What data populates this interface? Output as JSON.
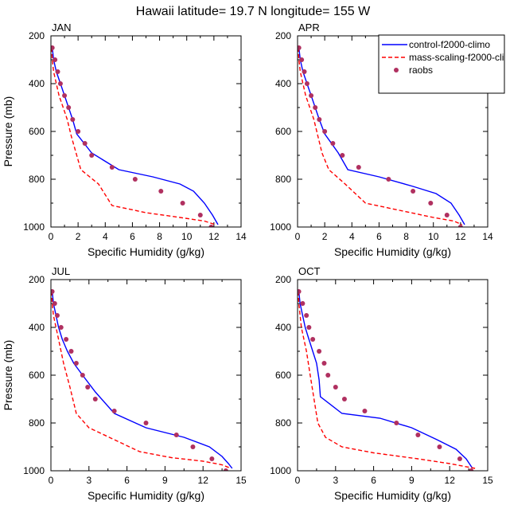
{
  "title": "Hawaii  latitude= 19.7 N longitude= 155 W",
  "legend": [
    {
      "name": "control-f2000-climo",
      "color": "#0000ff",
      "style": "solid"
    },
    {
      "name": "mass-scaling-f2000-cli",
      "color": "#ff0000",
      "style": "dashed"
    },
    {
      "name": "raobs",
      "color": "#b03060",
      "style": "marker"
    }
  ],
  "chart_data": [
    {
      "type": "line",
      "panel": "JAN",
      "xlabel": "Specific Humidity (g/kg)",
      "ylabel": "Pressure (mb)",
      "xlim": [
        0,
        14
      ],
      "ylim": [
        1000,
        200
      ],
      "xticks": [
        0,
        2,
        4,
        6,
        8,
        10,
        12,
        14
      ],
      "yticks": [
        200,
        400,
        600,
        800,
        1000
      ],
      "series": [
        {
          "name": "control-f2000-climo",
          "x": [
            0.1,
            0.2,
            0.4,
            0.7,
            1.0,
            1.3,
            1.6,
            1.9,
            3.0,
            5.0,
            7.5,
            9.5,
            10.5,
            11.3,
            11.9,
            12.3
          ],
          "y": [
            250,
            300,
            350,
            400,
            450,
            500,
            550,
            610,
            690,
            760,
            790,
            820,
            850,
            900,
            950,
            990
          ]
        },
        {
          "name": "mass-scaling-f2000-cli",
          "x": [
            0.05,
            0.1,
            0.2,
            0.4,
            0.6,
            0.9,
            1.2,
            1.5,
            2.2,
            3.5,
            4.5,
            7.0,
            9.5,
            11.3,
            12.1
          ],
          "y": [
            250,
            300,
            350,
            400,
            450,
            500,
            550,
            620,
            760,
            820,
            910,
            940,
            960,
            975,
            990
          ]
        },
        {
          "name": "raobs",
          "x": [
            0.1,
            0.3,
            0.5,
            0.7,
            1.0,
            1.3,
            1.6,
            2.0,
            2.5,
            3.0,
            4.5,
            6.2,
            8.1,
            9.7,
            11.0,
            11.8
          ],
          "y": [
            250,
            300,
            350,
            400,
            450,
            500,
            550,
            600,
            650,
            700,
            750,
            800,
            850,
            900,
            950,
            1000
          ]
        }
      ]
    },
    {
      "type": "line",
      "panel": "APR",
      "xlabel": "Specific Humidity (g/kg)",
      "ylabel": "",
      "xlim": [
        0,
        14
      ],
      "ylim": [
        1000,
        200
      ],
      "xticks": [
        0,
        2,
        4,
        6,
        8,
        10,
        12,
        14
      ],
      "yticks": [
        200,
        400,
        600,
        800,
        1000
      ],
      "series": [
        {
          "name": "control-f2000-climo",
          "x": [
            0.1,
            0.2,
            0.4,
            0.7,
            1.0,
            1.3,
            1.6,
            2.0,
            3.0,
            3.7,
            6.0,
            8.5,
            10.2,
            11.3,
            11.9,
            12.3
          ],
          "y": [
            250,
            300,
            350,
            400,
            450,
            500,
            550,
            610,
            690,
            760,
            790,
            830,
            860,
            900,
            950,
            990
          ]
        },
        {
          "name": "mass-scaling-f2000-cli",
          "x": [
            0.05,
            0.1,
            0.2,
            0.4,
            0.6,
            0.9,
            1.2,
            1.5,
            1.8,
            2.3,
            3.5,
            5.0,
            7.5,
            10.0,
            11.5,
            12.1
          ],
          "y": [
            250,
            300,
            350,
            400,
            450,
            500,
            550,
            620,
            690,
            760,
            820,
            900,
            930,
            960,
            975,
            990
          ]
        },
        {
          "name": "raobs",
          "x": [
            0.1,
            0.3,
            0.5,
            0.7,
            1.0,
            1.3,
            1.6,
            2.0,
            2.6,
            3.3,
            4.5,
            6.7,
            8.5,
            9.8,
            11.0,
            12.0
          ],
          "y": [
            250,
            300,
            350,
            400,
            450,
            500,
            550,
            600,
            650,
            700,
            750,
            800,
            850,
            900,
            950,
            1000
          ]
        }
      ]
    },
    {
      "type": "line",
      "panel": "JUL",
      "xlabel": "Specific Humidity (g/kg)",
      "ylabel": "Pressure (mb)",
      "xlim": [
        0,
        15
      ],
      "ylim": [
        1000,
        200
      ],
      "xticks": [
        0,
        3,
        6,
        9,
        12,
        15
      ],
      "yticks": [
        200,
        400,
        600,
        800,
        1000
      ],
      "series": [
        {
          "name": "control-f2000-climo",
          "x": [
            0.1,
            0.2,
            0.4,
            0.6,
            0.9,
            1.3,
            1.8,
            2.5,
            3.5,
            5.0,
            7.5,
            10.5,
            12.5,
            13.5,
            14.0,
            14.3
          ],
          "y": [
            250,
            300,
            350,
            400,
            450,
            500,
            550,
            600,
            670,
            760,
            820,
            860,
            900,
            940,
            970,
            990
          ]
        },
        {
          "name": "mass-scaling-f2000-cli",
          "x": [
            0.05,
            0.1,
            0.2,
            0.4,
            0.6,
            1.0,
            1.5,
            2.0,
            3.0,
            5.0,
            7.0,
            9.5,
            12.0,
            13.5,
            14.2
          ],
          "y": [
            250,
            300,
            350,
            400,
            450,
            550,
            650,
            760,
            820,
            870,
            920,
            945,
            960,
            975,
            990
          ]
        },
        {
          "name": "raobs",
          "x": [
            0.1,
            0.3,
            0.5,
            0.8,
            1.2,
            1.6,
            2.0,
            2.5,
            2.9,
            3.5,
            5.0,
            7.5,
            9.9,
            11.2,
            12.7,
            13.8
          ],
          "y": [
            250,
            300,
            350,
            400,
            450,
            500,
            550,
            600,
            650,
            700,
            750,
            800,
            850,
            900,
            950,
            1000
          ]
        }
      ]
    },
    {
      "type": "line",
      "panel": "OCT",
      "xlabel": "Specific Humidity (g/kg)",
      "ylabel": "",
      "xlim": [
        0,
        15
      ],
      "ylim": [
        1000,
        200
      ],
      "xticks": [
        0,
        3,
        6,
        9,
        12,
        15
      ],
      "yticks": [
        200,
        400,
        600,
        800,
        1000
      ],
      "series": [
        {
          "name": "control-f2000-climo",
          "x": [
            0.1,
            0.2,
            0.4,
            0.6,
            0.9,
            1.2,
            1.5,
            1.7,
            1.8,
            3.5,
            6.5,
            9.0,
            11.0,
            12.5,
            13.3,
            13.8
          ],
          "y": [
            250,
            300,
            350,
            400,
            450,
            500,
            550,
            620,
            690,
            760,
            780,
            820,
            870,
            910,
            950,
            990
          ]
        },
        {
          "name": "mass-scaling-f2000-cli",
          "x": [
            0.05,
            0.1,
            0.2,
            0.3,
            0.5,
            0.7,
            1.0,
            1.3,
            1.6,
            2.2,
            3.5,
            6.0,
            9.5,
            12.0,
            14.0
          ],
          "y": [
            250,
            300,
            350,
            400,
            450,
            500,
            600,
            700,
            800,
            860,
            900,
            925,
            950,
            970,
            990
          ]
        },
        {
          "name": "raobs",
          "x": [
            0.1,
            0.4,
            0.7,
            0.9,
            1.2,
            1.7,
            2.1,
            2.4,
            3.0,
            3.7,
            5.3,
            7.8,
            9.5,
            11.2,
            12.8,
            13.7
          ],
          "y": [
            250,
            300,
            350,
            400,
            450,
            500,
            550,
            600,
            650,
            700,
            750,
            800,
            850,
            900,
            950,
            1000
          ]
        }
      ]
    }
  ]
}
